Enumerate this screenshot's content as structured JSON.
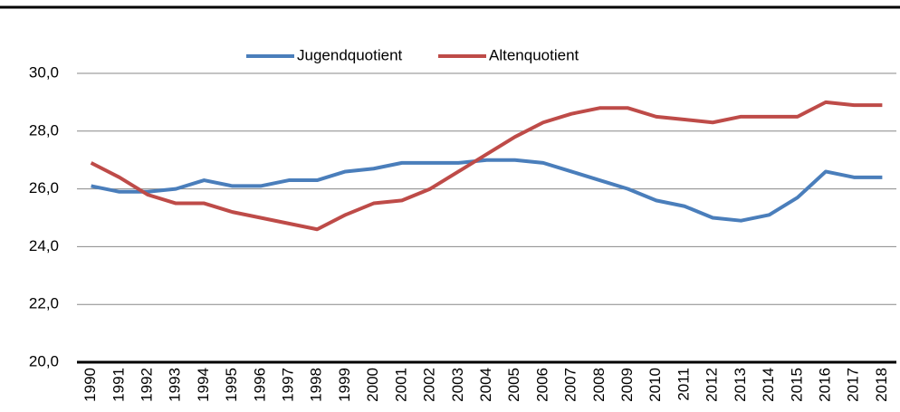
{
  "chart_data": {
    "type": "line",
    "categories": [
      "1990",
      "1991",
      "1992",
      "1993",
      "1994",
      "1995",
      "1996",
      "1997",
      "1998",
      "1999",
      "2000",
      "2001",
      "2002",
      "2003",
      "2004",
      "2005",
      "2006",
      "2007",
      "2008",
      "2009",
      "2010",
      "2011",
      "2012",
      "2013",
      "2014",
      "2015",
      "2016",
      "2017",
      "2018"
    ],
    "series": [
      {
        "name": "Jugendquotient",
        "color": "#4a7ebb",
        "values": [
          26.1,
          25.9,
          25.9,
          26.0,
          26.3,
          26.1,
          26.1,
          26.3,
          26.3,
          26.6,
          26.7,
          26.9,
          26.9,
          26.9,
          27.0,
          27.0,
          26.9,
          26.6,
          26.3,
          26.0,
          25.6,
          25.4,
          25.0,
          24.9,
          25.1,
          25.7,
          26.6,
          26.4,
          26.4
        ]
      },
      {
        "name": "Altenquotient",
        "color": "#be4b48",
        "values": [
          26.9,
          26.4,
          25.8,
          25.5,
          25.5,
          25.2,
          25.0,
          24.8,
          24.6,
          25.1,
          25.5,
          25.6,
          26.0,
          26.6,
          27.2,
          27.8,
          28.3,
          28.6,
          28.8,
          28.8,
          28.5,
          28.4,
          28.3,
          28.5,
          28.5,
          28.5,
          29.0,
          28.9,
          28.9
        ]
      }
    ],
    "ylim": [
      20,
      30
    ],
    "yticks": [
      {
        "value": 20,
        "label": "20,0"
      },
      {
        "value": 22,
        "label": "22,0"
      },
      {
        "value": 24,
        "label": "24,0"
      },
      {
        "value": 26,
        "label": "26,0"
      },
      {
        "value": 28,
        "label": "28,0"
      },
      {
        "value": 30,
        "label": "30,0"
      }
    ],
    "grid": true,
    "legend": "top"
  }
}
